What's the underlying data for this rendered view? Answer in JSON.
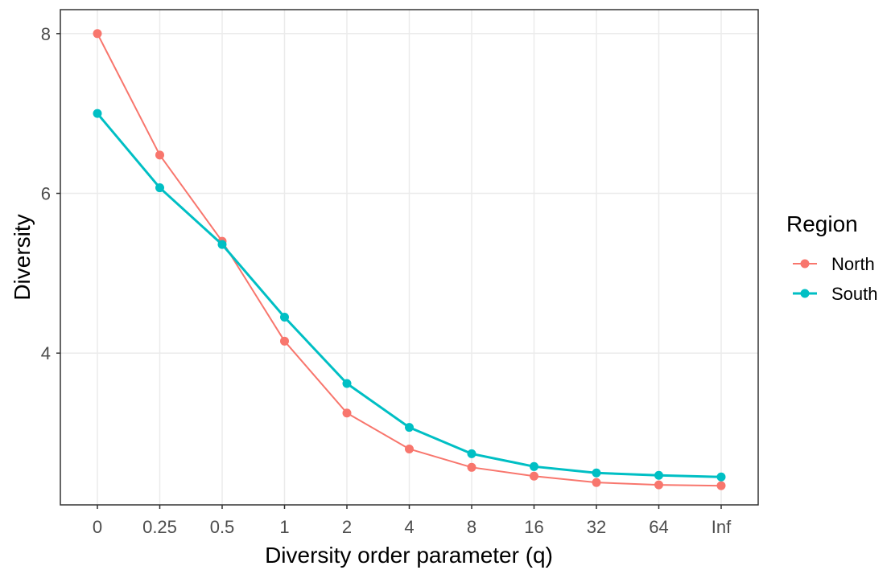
{
  "chart_data": {
    "type": "line",
    "title": "",
    "xlabel": "Diversity order parameter (q)",
    "ylabel": "Diversity",
    "categories": [
      "0",
      "0.25",
      "0.5",
      "1",
      "2",
      "4",
      "8",
      "16",
      "32",
      "64",
      "Inf"
    ],
    "ylim": [
      2.1,
      8.3
    ],
    "yticks": [
      4,
      6,
      8
    ],
    "grid": true,
    "legend": {
      "title": "Region",
      "position": "right"
    },
    "series": [
      {
        "name": "North",
        "color": "#f8766d",
        "values": [
          8.0,
          6.48,
          5.4,
          4.15,
          3.25,
          2.8,
          2.57,
          2.46,
          2.38,
          2.35,
          2.34
        ]
      },
      {
        "name": "South",
        "color": "#00bfc4",
        "values": [
          7.0,
          6.07,
          5.36,
          4.45,
          3.62,
          3.07,
          2.74,
          2.58,
          2.5,
          2.47,
          2.45
        ]
      }
    ]
  }
}
